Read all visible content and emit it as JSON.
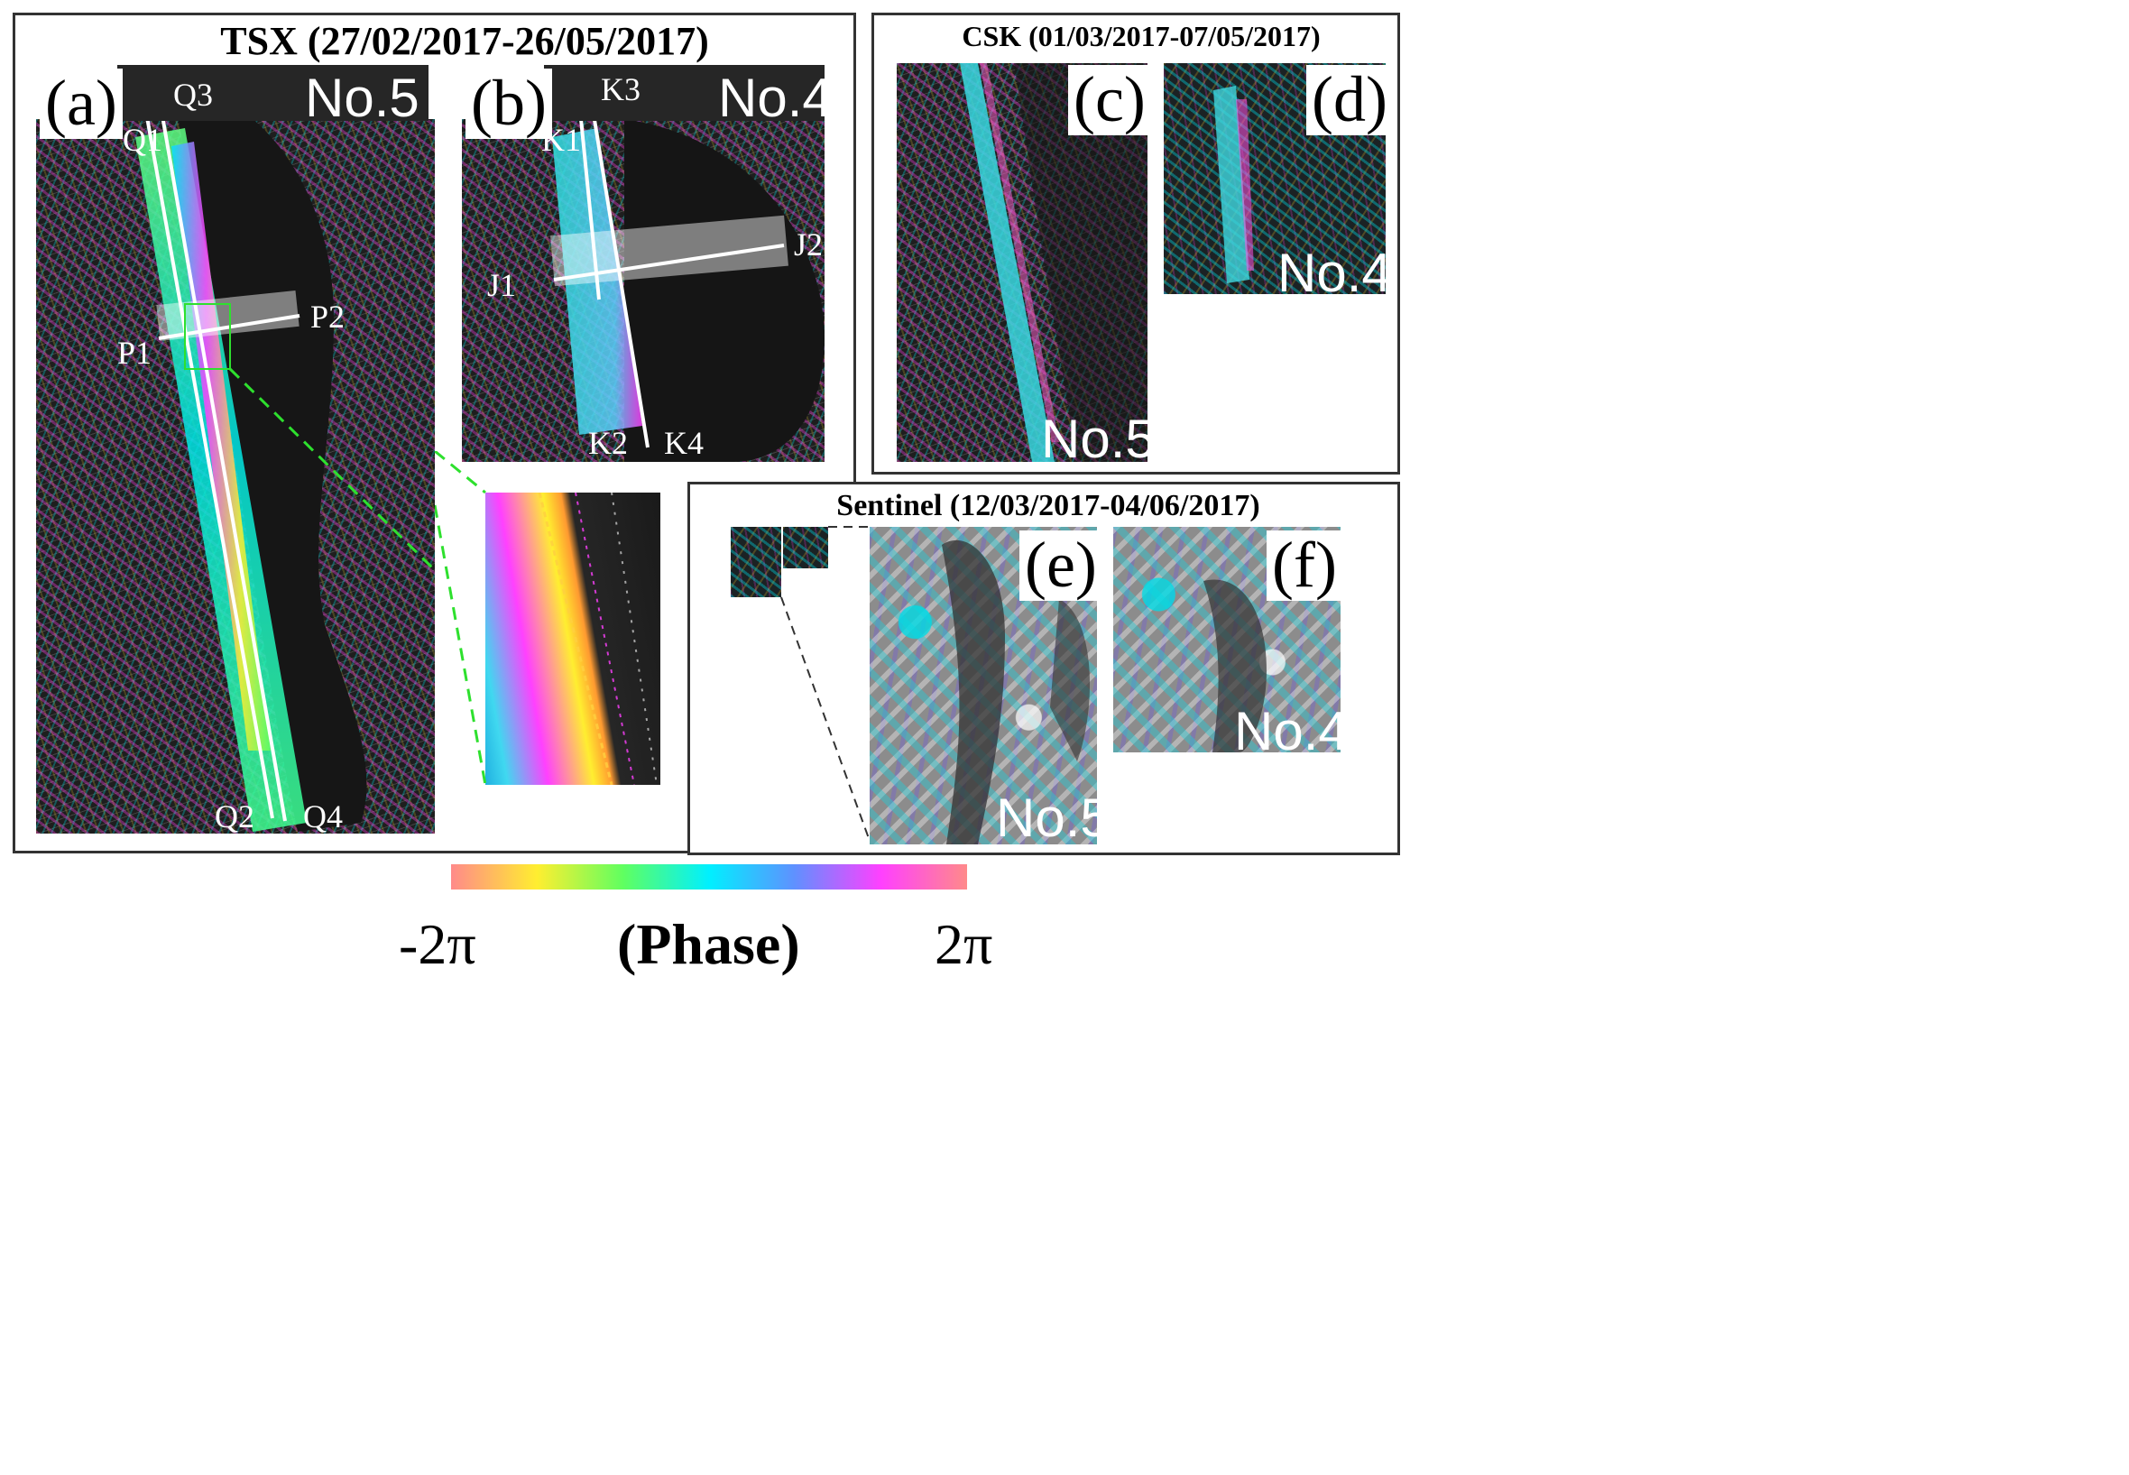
{
  "panels": {
    "tsx": {
      "title": "TSX (27/02/2017-26/05/2017)"
    },
    "csk": {
      "title": "CSK (01/03/2017-07/05/2017)"
    },
    "sentinel": {
      "title": "Sentinel (12/03/2017-04/06/2017)"
    }
  },
  "letters": {
    "a": "(a)",
    "b": "(b)",
    "c": "(c)",
    "d": "(d)",
    "e": "(e)",
    "f": "(f)"
  },
  "numbers": {
    "a": "No.5",
    "b": "No.4",
    "c": "No.5",
    "d": "No.4",
    "e": "No.5",
    "f": "No.4"
  },
  "points": {
    "q1": "Q1",
    "q2": "Q2",
    "q3": "Q3",
    "q4": "Q4",
    "p1": "P1",
    "p2": "P2",
    "k1": "K1",
    "k2": "K2",
    "k3": "K3",
    "k4": "K4",
    "j1": "J1",
    "j2": "J2"
  },
  "colorbar": {
    "min_label": "-2π",
    "label": "(Phase)",
    "max_label": "2π",
    "colors": [
      "#ff8a8a",
      "#ffee30",
      "#60ff60",
      "#00f0ff",
      "#6090ff",
      "#ff40ff",
      "#ff8a8a"
    ]
  }
}
